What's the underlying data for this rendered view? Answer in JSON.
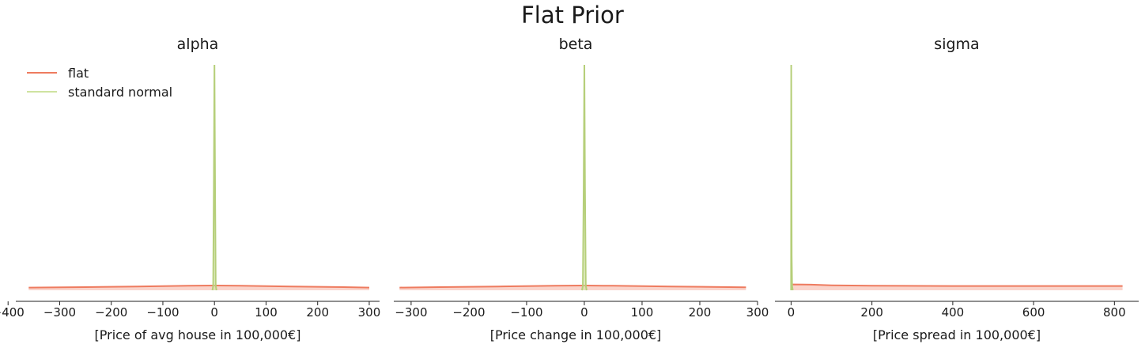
{
  "figure": {
    "title": "Flat Prior"
  },
  "colors": {
    "flat": "#ee7b5f",
    "flat_fill": "#f6b8a8",
    "standard_normal": "#cfe3a0",
    "standard_normal_dark": "#b6cf7a",
    "axis": "#222222",
    "text": "#1a1a1a"
  },
  "legend": [
    {
      "label": "flat",
      "series": "flat"
    },
    {
      "label": "standard normal",
      "series": "standard_normal"
    }
  ],
  "chart_data": [
    {
      "type": "line",
      "title": "alpha",
      "xlabel": "[Price of avg house in 100,000€]",
      "xlim": [
        -385,
        320
      ],
      "ylim": [
        0,
        1
      ],
      "xticks": [
        -400,
        -300,
        -200,
        -100,
        0,
        100,
        200,
        300
      ],
      "xtick_labels": [
        "−400",
        "−300",
        "−200",
        "−100",
        "0",
        "100",
        "200",
        "300"
      ],
      "series": [
        {
          "name": "flat",
          "key": "flat",
          "x": [
            -360,
            -250,
            -150,
            -50,
            0,
            50,
            150,
            250,
            300
          ],
          "y": [
            0.012,
            0.014,
            0.017,
            0.02,
            0.021,
            0.02,
            0.017,
            0.014,
            0.012
          ]
        },
        {
          "name": "standard normal",
          "key": "standard_normal",
          "x": [
            -4,
            -2.5,
            -1.2,
            0,
            1.2,
            2.5,
            4
          ],
          "y": [
            0.0,
            0.02,
            0.45,
            1.0,
            0.45,
            0.02,
            0.0
          ]
        }
      ]
    },
    {
      "type": "line",
      "title": "beta",
      "xlabel": "[Price change in 100,000€]",
      "xlim": [
        -330,
        300
      ],
      "ylim": [
        0,
        1
      ],
      "xticks": [
        -300,
        -200,
        -100,
        0,
        100,
        200,
        300
      ],
      "xtick_labels": [
        "−300",
        "−200",
        "−100",
        "0",
        "100",
        "200",
        "300"
      ],
      "series": [
        {
          "name": "flat",
          "key": "flat",
          "x": [
            -320,
            -250,
            -150,
            -50,
            0,
            50,
            150,
            250,
            280
          ],
          "y": [
            0.012,
            0.014,
            0.017,
            0.02,
            0.021,
            0.02,
            0.017,
            0.014,
            0.013
          ]
        },
        {
          "name": "standard normal",
          "key": "standard_normal",
          "x": [
            -4,
            -2.5,
            -1.2,
            0,
            1.2,
            2.5,
            4
          ],
          "y": [
            0.0,
            0.02,
            0.45,
            1.0,
            0.45,
            0.02,
            0.0
          ]
        }
      ]
    },
    {
      "type": "line",
      "title": "sigma",
      "xlabel": "[Price spread in 100,000€]",
      "xlim": [
        -40,
        860
      ],
      "ylim": [
        0,
        1
      ],
      "xticks": [
        0,
        200,
        400,
        600,
        800
      ],
      "xtick_labels": [
        "0",
        "200",
        "400",
        "600",
        "800"
      ],
      "series": [
        {
          "name": "flat",
          "key": "flat",
          "x": [
            0,
            5,
            50,
            100,
            200,
            400,
            600,
            820
          ],
          "y": [
            0.024,
            0.026,
            0.025,
            0.022,
            0.02,
            0.019,
            0.019,
            0.019
          ]
        },
        {
          "name": "standard normal",
          "key": "standard_normal",
          "x": [
            0,
            0.3,
            0.8,
            1.5,
            2.5,
            4
          ],
          "y": [
            0.0,
            1.0,
            0.6,
            0.15,
            0.02,
            0.0
          ]
        }
      ]
    }
  ]
}
